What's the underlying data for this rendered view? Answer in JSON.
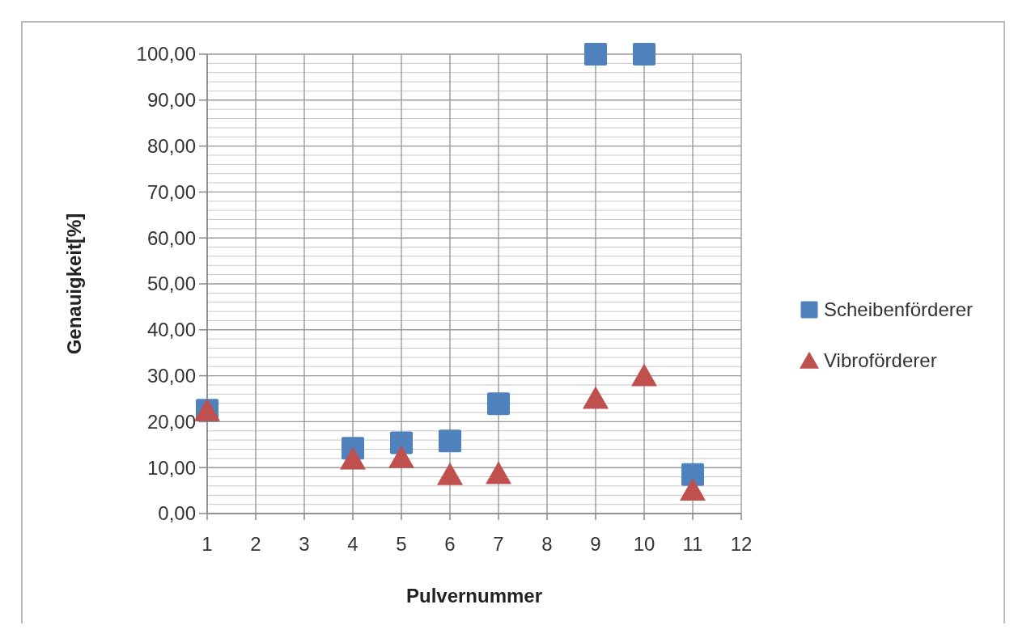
{
  "chart_data": {
    "type": "scatter",
    "xlabel": "Pulvernummer",
    "ylabel": "Genauigkeit[%]",
    "xlim": [
      1,
      12
    ],
    "xticks": [
      1,
      2,
      3,
      4,
      5,
      6,
      7,
      8,
      9,
      10,
      11,
      12
    ],
    "ylim": [
      0,
      100
    ],
    "yticks": [
      {
        "value": 0,
        "label": "0,00"
      },
      {
        "value": 2,
        "label": null
      },
      {
        "value": 4,
        "label": null
      },
      {
        "value": 6,
        "label": null
      },
      {
        "value": 8,
        "label": null
      },
      {
        "value": 10,
        "label": "10,00"
      },
      {
        "value": 12,
        "label": null
      },
      {
        "value": 14,
        "label": null
      },
      {
        "value": 16,
        "label": null
      },
      {
        "value": 18,
        "label": null
      },
      {
        "value": 20,
        "label": "20,00"
      },
      {
        "value": 22,
        "label": null
      },
      {
        "value": 24,
        "label": null
      },
      {
        "value": 26,
        "label": null
      },
      {
        "value": 28,
        "label": null
      },
      {
        "value": 30,
        "label": "30,00"
      },
      {
        "value": 32,
        "label": null
      },
      {
        "value": 34,
        "label": null
      },
      {
        "value": 36,
        "label": null
      },
      {
        "value": 38,
        "label": null
      },
      {
        "value": 40,
        "label": "40,00"
      },
      {
        "value": 42,
        "label": null
      },
      {
        "value": 44,
        "label": null
      },
      {
        "value": 46,
        "label": null
      },
      {
        "value": 48,
        "label": null
      },
      {
        "value": 50,
        "label": "50,00"
      },
      {
        "value": 52,
        "label": null
      },
      {
        "value": 54,
        "label": null
      },
      {
        "value": 56,
        "label": null
      },
      {
        "value": 58,
        "label": null
      },
      {
        "value": 60,
        "label": "60,00"
      },
      {
        "value": 62,
        "label": null
      },
      {
        "value": 64,
        "label": null
      },
      {
        "value": 66,
        "label": null
      },
      {
        "value": 68,
        "label": null
      },
      {
        "value": 70,
        "label": "70,00"
      },
      {
        "value": 72,
        "label": null
      },
      {
        "value": 74,
        "label": null
      },
      {
        "value": 76,
        "label": null
      },
      {
        "value": 78,
        "label": null
      },
      {
        "value": 80,
        "label": "80,00"
      },
      {
        "value": 82,
        "label": null
      },
      {
        "value": 84,
        "label": null
      },
      {
        "value": 86,
        "label": null
      },
      {
        "value": 88,
        "label": null
      },
      {
        "value": 90,
        "label": "90,00"
      },
      {
        "value": 92,
        "label": null
      },
      {
        "value": 94,
        "label": null
      },
      {
        "value": 96,
        "label": null
      },
      {
        "value": 98,
        "label": null
      },
      {
        "value": 100,
        "label": "100,00"
      }
    ],
    "grid": true,
    "legend": "right",
    "series": [
      {
        "name": "Scheibenförderer",
        "color": "#4f81bd",
        "marker": "square",
        "x": [
          1,
          4,
          5,
          6,
          7,
          9,
          10,
          11
        ],
        "values": [
          22.5,
          14.2,
          15.4,
          15.8,
          23.9,
          100,
          100,
          8.5
        ]
      },
      {
        "name": "Vibroförderer",
        "color": "#c0504d",
        "marker": "triangle",
        "x": [
          1,
          4,
          5,
          6,
          7,
          9,
          10,
          11
        ],
        "values": [
          22.4,
          11.9,
          12.2,
          8.5,
          8.7,
          25.1,
          30.0,
          5.1
        ]
      }
    ]
  }
}
